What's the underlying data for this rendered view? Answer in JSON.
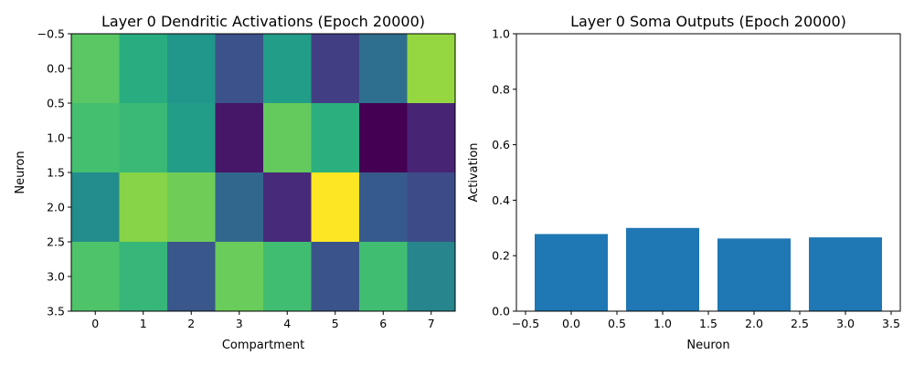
{
  "chart_data": [
    {
      "type": "heatmap",
      "title": "Layer 0 Dendritic Activations (Epoch 20000)",
      "xlabel": "Compartment",
      "ylabel": "Neuron",
      "colormap": "viridis",
      "x_ticks": [
        "0",
        "1",
        "2",
        "3",
        "4",
        "5",
        "6",
        "7"
      ],
      "y_ticks": [
        "−0.5",
        "0.0",
        "0.5",
        "1.0",
        "1.5",
        "2.0",
        "2.5",
        "3.0",
        "3.5"
      ],
      "rows": [
        "0",
        "1",
        "2",
        "3"
      ],
      "columns": [
        "0",
        "1",
        "2",
        "3",
        "4",
        "5",
        "6",
        "7"
      ],
      "values": [
        [
          0.74,
          0.62,
          0.52,
          0.25,
          0.55,
          0.18,
          0.36,
          0.84
        ],
        [
          0.7,
          0.67,
          0.55,
          0.06,
          0.76,
          0.63,
          0.0,
          0.1
        ],
        [
          0.48,
          0.82,
          0.78,
          0.33,
          0.12,
          1.0,
          0.28,
          0.23
        ],
        [
          0.72,
          0.66,
          0.27,
          0.77,
          0.69,
          0.26,
          0.69,
          0.45
        ]
      ]
    },
    {
      "type": "bar",
      "title": "Layer 0 Soma Outputs (Epoch 20000)",
      "xlabel": "Neuron",
      "ylabel": "Activation",
      "x": [
        0,
        1,
        2,
        3
      ],
      "values": [
        0.278,
        0.3,
        0.262,
        0.266
      ],
      "ylim": [
        0,
        1
      ],
      "xlim": [
        -0.6,
        3.6
      ],
      "bar_width": 0.8,
      "x_ticks": [
        "−0.5",
        "0.0",
        "0.5",
        "1.0",
        "1.5",
        "2.0",
        "2.5",
        "3.0",
        "3.5"
      ],
      "y_ticks": [
        "0.0",
        "0.2",
        "0.4",
        "0.6",
        "0.8",
        "1.0"
      ],
      "color": "#1f77b4"
    }
  ]
}
